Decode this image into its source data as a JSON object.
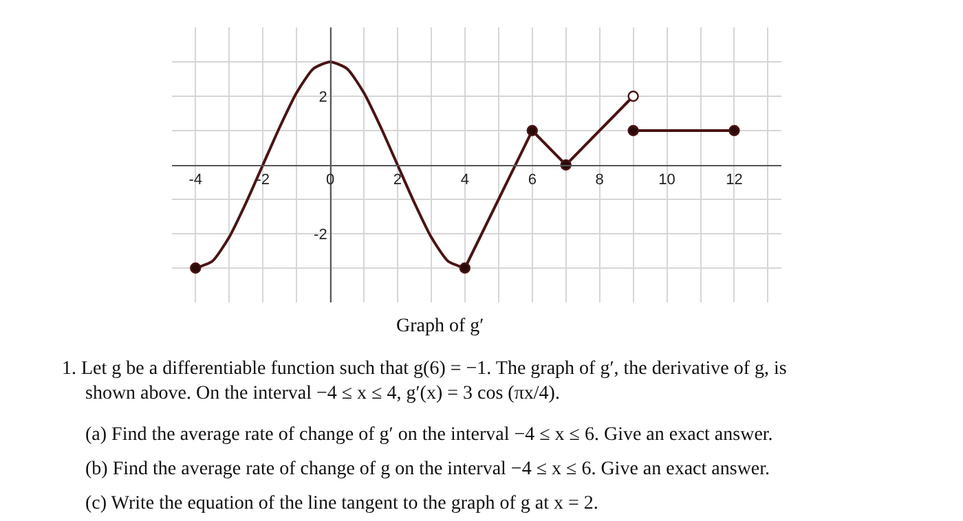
{
  "chart_data": {
    "type": "line",
    "title": "Graph of g′",
    "xlim": [
      -4.7,
      13.4
    ],
    "ylim": [
      -4,
      4
    ],
    "xticks": [
      {
        "value": -4,
        "label": "-4"
      },
      {
        "value": -3,
        "label": null
      },
      {
        "value": -2,
        "label": "-2"
      },
      {
        "value": -1,
        "label": null
      },
      {
        "value": 0,
        "label": "0"
      },
      {
        "value": 1,
        "label": null
      },
      {
        "value": 2,
        "label": "2"
      },
      {
        "value": 3,
        "label": null
      },
      {
        "value": 4,
        "label": "4"
      },
      {
        "value": 5,
        "label": null
      },
      {
        "value": 6,
        "label": "6"
      },
      {
        "value": 7,
        "label": null
      },
      {
        "value": 8,
        "label": "8"
      },
      {
        "value": 9,
        "label": null
      },
      {
        "value": 10,
        "label": "10"
      },
      {
        "value": 11,
        "label": null
      },
      {
        "value": 12,
        "label": "12"
      },
      {
        "value": 13,
        "label": null
      }
    ],
    "yticks": [
      {
        "value": -3,
        "label": null
      },
      {
        "value": -2,
        "label": "-2"
      },
      {
        "value": -1,
        "label": null
      },
      {
        "value": 1,
        "label": null
      },
      {
        "value": 2,
        "label": "2"
      },
      {
        "value": 3,
        "label": null
      }
    ],
    "grid": true,
    "series": [
      {
        "color": "#4a1414",
        "marker": "none",
        "x": [
          -4,
          -3.5,
          -3,
          -2.5,
          -2,
          -1.5,
          -1,
          -0.5,
          0,
          0.5,
          1,
          1.5,
          2,
          2.5,
          3,
          3.5,
          4
        ],
        "values": [
          -3,
          -2.8,
          -2.1,
          -1.1,
          0,
          1.1,
          2.1,
          2.8,
          3,
          2.8,
          2.1,
          1.1,
          0,
          -1.1,
          -2.1,
          -2.8,
          -3
        ]
      },
      {
        "color": "#4a1414",
        "marker": "none",
        "x": [
          4,
          6,
          7,
          9
        ],
        "values": [
          -3,
          1,
          0,
          2
        ]
      },
      {
        "color": "#4a1414",
        "marker": "none",
        "x": [
          9,
          12
        ],
        "values": [
          1,
          1
        ]
      },
      {
        "type": "scatter",
        "color": "#2b0a0a",
        "marker": "circle",
        "x": [
          -4,
          4,
          6,
          7,
          9,
          12
        ],
        "values": [
          -3,
          -3,
          1,
          0,
          1,
          1
        ]
      },
      {
        "type": "scatter",
        "color": "#ffffff",
        "marker": "circle",
        "x": [
          9
        ],
        "values": [
          2
        ]
      }
    ],
    "annotations": [
      "1. Let g be a differentiable function such that g(6) = −1. The graph of g′, the derivative of g, is",
      "shown above. On the interval −4 ≤ x ≤ 4, g′(x) = 3 cos (πx/4).",
      "(a) Find the average rate of change of g′ on the interval −4 ≤ x ≤ 6. Give an exact answer.",
      "(b) Find the average rate of change of g on the interval −4 ≤ x ≤ 6. Give an exact answer.",
      "(c) Write the equation of the line tangent to the graph of g at x = 2."
    ]
  }
}
